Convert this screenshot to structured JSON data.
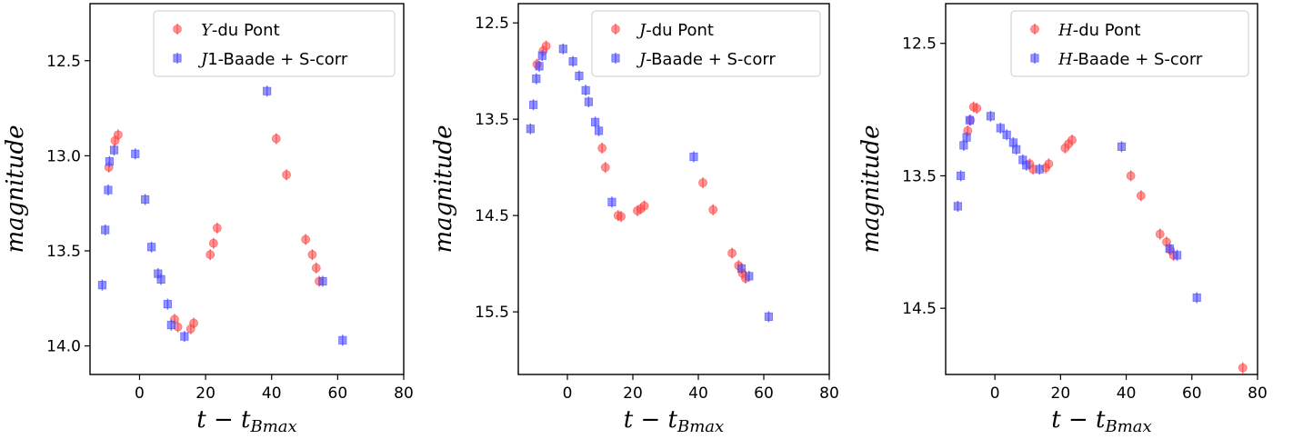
{
  "chart_data": [
    {
      "type": "scatter",
      "xlabel": "t − t",
      "xlabel_sub": "Bmax",
      "ylabel": "magnitude",
      "xlim": [
        -15,
        80
      ],
      "ylim": [
        14.15,
        12.2
      ],
      "y_inverted": true,
      "xticks": [
        0,
        20,
        40,
        60,
        80
      ],
      "yticks": [
        12.5,
        13.0,
        13.5,
        14.0
      ],
      "ytick_labels": [
        "12.5",
        "13.0",
        "13.5",
        "14.0"
      ],
      "legend_position": "top-right",
      "series": [
        {
          "name": "Y-du Pont",
          "name_italic": "Y",
          "name_rest": "-du Pont",
          "marker": "circle",
          "color": "#ff4d4d",
          "x": [
            -9.3,
            -7.4,
            -6.5,
            10.6,
            11.6,
            15.5,
            16.4,
            21.4,
            22.4,
            23.5,
            41.4,
            44.5,
            50.3,
            52.3,
            53.5,
            54.4
          ],
          "y": [
            13.06,
            12.92,
            12.89,
            13.86,
            13.9,
            13.91,
            13.88,
            13.52,
            13.46,
            13.38,
            12.91,
            13.1,
            13.44,
            13.52,
            13.59,
            13.66
          ]
        },
        {
          "name": "J1-Baade + S-corr",
          "name_italic": "J",
          "name_rest": "1-Baade + S-corr",
          "marker": "square",
          "color": "#4d4dff",
          "x": [
            -11.3,
            -10.4,
            -9.5,
            -9.1,
            -7.7,
            -1.3,
            1.7,
            3.6,
            5.6,
            6.5,
            8.5,
            9.6,
            13.6,
            38.6,
            55.5,
            61.5
          ],
          "y": [
            13.68,
            13.39,
            13.18,
            13.03,
            12.97,
            12.99,
            13.23,
            13.48,
            13.62,
            13.65,
            13.78,
            13.89,
            13.95,
            12.66,
            13.66,
            13.97
          ]
        }
      ]
    },
    {
      "type": "scatter",
      "xlabel": "t − t",
      "xlabel_sub": "Bmax",
      "ylabel": "magnitude",
      "xlim": [
        -15,
        80
      ],
      "ylim": [
        16.15,
        12.3
      ],
      "y_inverted": true,
      "xticks": [
        0,
        20,
        40,
        60,
        80
      ],
      "yticks": [
        12.5,
        13.5,
        14.5,
        15.5
      ],
      "ytick_labels": [
        "12.5",
        "13.5",
        "14.5",
        "15.5"
      ],
      "legend_position": "top-right",
      "series": [
        {
          "name": "J-du Pont",
          "name_italic": "J",
          "name_rest": "-du Pont",
          "marker": "circle",
          "color": "#ff4d4d",
          "x": [
            -9.3,
            -7.4,
            -6.5,
            10.6,
            11.6,
            15.5,
            16.4,
            21.4,
            22.4,
            23.5,
            41.4,
            44.5,
            50.3,
            52.3,
            53.5,
            54.4
          ],
          "y": [
            12.93,
            12.79,
            12.74,
            13.8,
            14.0,
            14.5,
            14.51,
            14.45,
            14.43,
            14.4,
            14.16,
            14.44,
            14.89,
            15.02,
            15.1,
            15.15
          ]
        },
        {
          "name": "J-Baade + S-corr",
          "name_italic": "J",
          "name_rest": "-Baade + S-corr",
          "marker": "square",
          "color": "#4d4dff",
          "x": [
            -11.3,
            -10.4,
            -9.5,
            -8.6,
            -7.7,
            -1.3,
            1.7,
            3.6,
            5.6,
            6.5,
            8.5,
            9.6,
            13.6,
            38.6,
            53.2,
            55.5,
            61.5
          ],
          "y": [
            13.6,
            13.35,
            13.08,
            12.95,
            12.84,
            12.77,
            12.9,
            13.05,
            13.2,
            13.32,
            13.53,
            13.62,
            14.36,
            13.89,
            15.05,
            15.13,
            15.55
          ]
        }
      ]
    },
    {
      "type": "scatter",
      "xlabel": "t − t",
      "xlabel_sub": "Bmax",
      "ylabel": "magnitude",
      "xlim": [
        -15,
        80
      ],
      "ylim": [
        15.0,
        12.2
      ],
      "y_inverted": true,
      "xticks": [
        0,
        20,
        40,
        60,
        80
      ],
      "yticks": [
        12.5,
        13.5,
        14.5
      ],
      "ytick_labels": [
        "12.5",
        "13.5",
        "14.5"
      ],
      "legend_position": "top-right",
      "series": [
        {
          "name": "H-du Pont",
          "name_italic": "H",
          "name_rest": "-du Pont",
          "marker": "circle",
          "color": "#ff4d4d",
          "x": [
            -8.3,
            -7.4,
            -6.5,
            -5.5,
            10.6,
            11.6,
            15.5,
            16.4,
            21.4,
            22.4,
            23.5,
            41.4,
            44.5,
            50.3,
            52.3,
            53.5,
            54.4,
            75.5
          ],
          "y": [
            13.16,
            13.08,
            12.98,
            12.99,
            13.41,
            13.45,
            13.44,
            13.41,
            13.29,
            13.26,
            13.23,
            13.5,
            13.65,
            13.94,
            14.0,
            14.06,
            14.1,
            14.95
          ]
        },
        {
          "name": "H-Baade + S-corr",
          "name_italic": "H",
          "name_rest": "-Baade + S-corr",
          "marker": "square",
          "color": "#4d4dff",
          "x": [
            -11.3,
            -10.4,
            -9.5,
            -8.6,
            -7.7,
            -1.3,
            1.7,
            3.6,
            5.6,
            6.5,
            8.5,
            9.6,
            13.6,
            38.6,
            53.2,
            55.5,
            61.5
          ],
          "y": [
            13.73,
            13.5,
            13.27,
            13.21,
            13.08,
            13.05,
            13.14,
            13.19,
            13.25,
            13.3,
            13.38,
            13.42,
            13.45,
            13.28,
            14.05,
            14.1,
            14.42
          ]
        }
      ]
    }
  ]
}
